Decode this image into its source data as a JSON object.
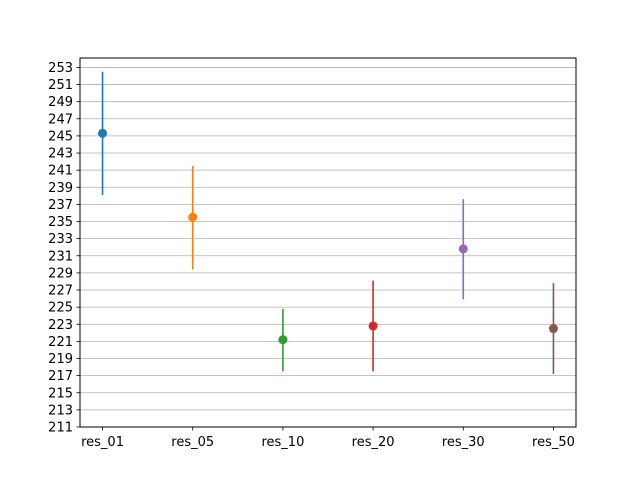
{
  "chart_data": {
    "type": "scatter",
    "subtype": "errorbar",
    "title": "",
    "xlabel": "",
    "ylabel": "",
    "categories": [
      "res_01",
      "res_05",
      "res_10",
      "res_20",
      "res_30",
      "res_50"
    ],
    "series": [
      {
        "category": "res_01",
        "mean": 245.3,
        "low": 238.1,
        "high": 252.5,
        "color": "#1f77b4"
      },
      {
        "category": "res_05",
        "mean": 235.5,
        "low": 229.4,
        "high": 241.5,
        "color": "#ff7f0e"
      },
      {
        "category": "res_10",
        "mean": 221.2,
        "low": 217.5,
        "high": 224.8,
        "color": "#2ca02c"
      },
      {
        "category": "res_20",
        "mean": 222.8,
        "low": 217.5,
        "high": 228.1,
        "color": "#d62728"
      },
      {
        "category": "res_30",
        "mean": 231.8,
        "low": 225.9,
        "high": 237.6,
        "color": "#9467bd"
      },
      {
        "category": "res_50",
        "mean": 222.5,
        "low": 217.2,
        "high": 227.8,
        "color": "#8c564b"
      }
    ],
    "yticks": [
      "211",
      "213",
      "215",
      "217",
      "219",
      "221",
      "223",
      "225",
      "227",
      "229",
      "231",
      "233",
      "235",
      "237",
      "239",
      "241",
      "243",
      "245",
      "247",
      "249",
      "251",
      "253"
    ],
    "ylim": [
      211,
      254.1
    ],
    "grid": "horizontal",
    "legend": "none"
  }
}
